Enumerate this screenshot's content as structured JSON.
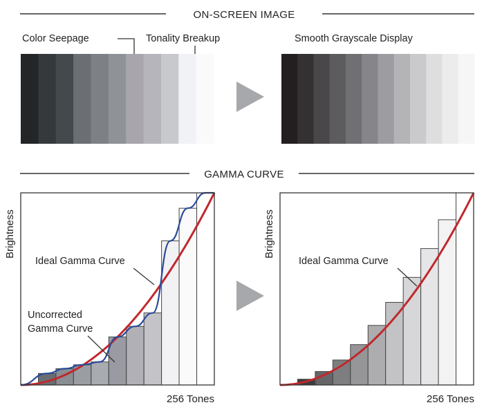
{
  "onscreen": {
    "title": "ON-SCREEN IMAGE",
    "left_labels": {
      "color_seepage": "Color Seepage",
      "tonality_breakup": "Tonality Breakup"
    },
    "right_label": "Smooth Grayscale Display",
    "left_swatches": [
      "#232526",
      "#35393b",
      "#44494c",
      "#6b6f73",
      "#7d8186",
      "#8f9397",
      "#a8a5ad",
      "#b6b5bb",
      "#c7c9cd",
      "#f1f2f5",
      "#fafafa"
    ],
    "right_swatches": [
      "#231f20",
      "#343132",
      "#49474a",
      "#5c5b5e",
      "#706f72",
      "#868589",
      "#9d9ca0",
      "#b4b3b6",
      "#cacacc",
      "#dedede",
      "#ececec",
      "#f6f6f6"
    ]
  },
  "gamma": {
    "title": "GAMMA CURVE",
    "left": {
      "ylabel": "Brightness",
      "xlabel": "256 Tones",
      "ideal_label": "Ideal Gamma Curve",
      "uncorrected_label_line1": "Uncorrected",
      "uncorrected_label_line2": "Gamma Curve",
      "bar_heights": [
        0.0,
        0.06,
        0.085,
        0.105,
        0.12,
        0.25,
        0.305,
        0.375,
        0.75,
        0.92,
        1.0
      ],
      "bar_fills": [
        "#ffffff",
        "#6a6e72",
        "#8a8e92",
        "#9a9ea2",
        "#a8acb0",
        "#9a9aa2",
        "#b0b0b6",
        "#c4c4c8",
        "#f2f2f4",
        "#fafafa",
        "#ffffff"
      ],
      "ideal_color": "#c0282d",
      "uncorrected_color": "#2a4a9a"
    },
    "right": {
      "ylabel": "Brightness",
      "xlabel": "256 Tones",
      "ideal_label": "Ideal Gamma Curve",
      "bar_heights": [
        0.0,
        0.03,
        0.07,
        0.13,
        0.21,
        0.31,
        0.43,
        0.56,
        0.71,
        0.86,
        1.0
      ],
      "bar_fills": [
        "#ffffff",
        "#3d3d3f",
        "#666668",
        "#7e7e80",
        "#969698",
        "#adadaf",
        "#c3c3c5",
        "#d7d7d9",
        "#e6e6e8",
        "#f3f3f4",
        "#ffffff"
      ],
      "ideal_color": "#c0282d"
    }
  },
  "arrow_color": "#a6a8ab"
}
